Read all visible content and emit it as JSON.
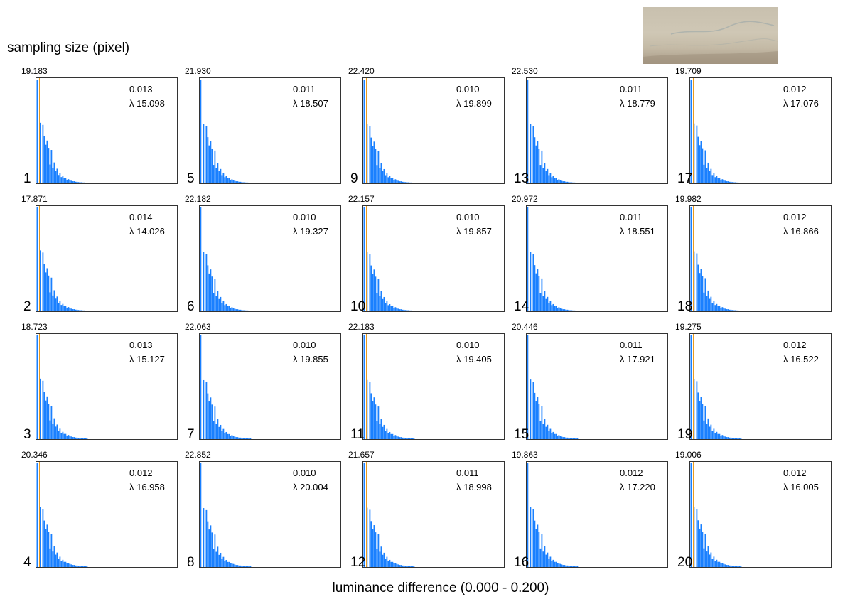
{
  "title": "sampling size (pixel)",
  "xlabel": "luminance difference (0.000 - 0.200)",
  "chart_data": {
    "type": "bar",
    "title": "sampling size (pixel)",
    "xlabel": "luminance difference (0.000 - 0.200)",
    "xlim": [
      0.0,
      0.2
    ],
    "bar_color": "#1a80ff",
    "mean_line_color": "#e89a20",
    "grid": false,
    "panels": [
      {
        "index": "1",
        "peak": "19.183",
        "mean": "0.013",
        "lambda": "λ 15.098"
      },
      {
        "index": "2",
        "peak": "17.871",
        "mean": "0.014",
        "lambda": "λ 14.026"
      },
      {
        "index": "3",
        "peak": "18.723",
        "mean": "0.013",
        "lambda": "λ 15.127"
      },
      {
        "index": "4",
        "peak": "20.346",
        "mean": "0.012",
        "lambda": "λ 16.958"
      },
      {
        "index": "5",
        "peak": "21.930",
        "mean": "0.011",
        "lambda": "λ 18.507"
      },
      {
        "index": "6",
        "peak": "22.182",
        "mean": "0.010",
        "lambda": "λ 19.327"
      },
      {
        "index": "7",
        "peak": "22.063",
        "mean": "0.010",
        "lambda": "λ 19.855"
      },
      {
        "index": "8",
        "peak": "22.852",
        "mean": "0.010",
        "lambda": "λ 20.004"
      },
      {
        "index": "9",
        "peak": "22.420",
        "mean": "0.010",
        "lambda": "λ 19.899"
      },
      {
        "index": "10",
        "peak": "22.157",
        "mean": "0.010",
        "lambda": "λ 19.857"
      },
      {
        "index": "11",
        "peak": "22.183",
        "mean": "0.010",
        "lambda": "λ 19.405"
      },
      {
        "index": "12",
        "peak": "21.657",
        "mean": "0.011",
        "lambda": "λ 18.998"
      },
      {
        "index": "13",
        "peak": "22.530",
        "mean": "0.011",
        "lambda": "λ 18.779"
      },
      {
        "index": "14",
        "peak": "20.972",
        "mean": "0.011",
        "lambda": "λ 18.551"
      },
      {
        "index": "15",
        "peak": "20.446",
        "mean": "0.011",
        "lambda": "λ 17.921"
      },
      {
        "index": "16",
        "peak": "19.863",
        "mean": "0.012",
        "lambda": "λ 17.220"
      },
      {
        "index": "17",
        "peak": "19.709",
        "mean": "0.012",
        "lambda": "λ 17.076"
      },
      {
        "index": "18",
        "peak": "19.982",
        "mean": "0.012",
        "lambda": "λ 16.866"
      },
      {
        "index": "19",
        "peak": "19.275",
        "mean": "0.012",
        "lambda": "λ 16.522"
      },
      {
        "index": "20",
        "peak": "19.006",
        "mean": "0.012",
        "lambda": "λ 16.005"
      }
    ]
  }
}
